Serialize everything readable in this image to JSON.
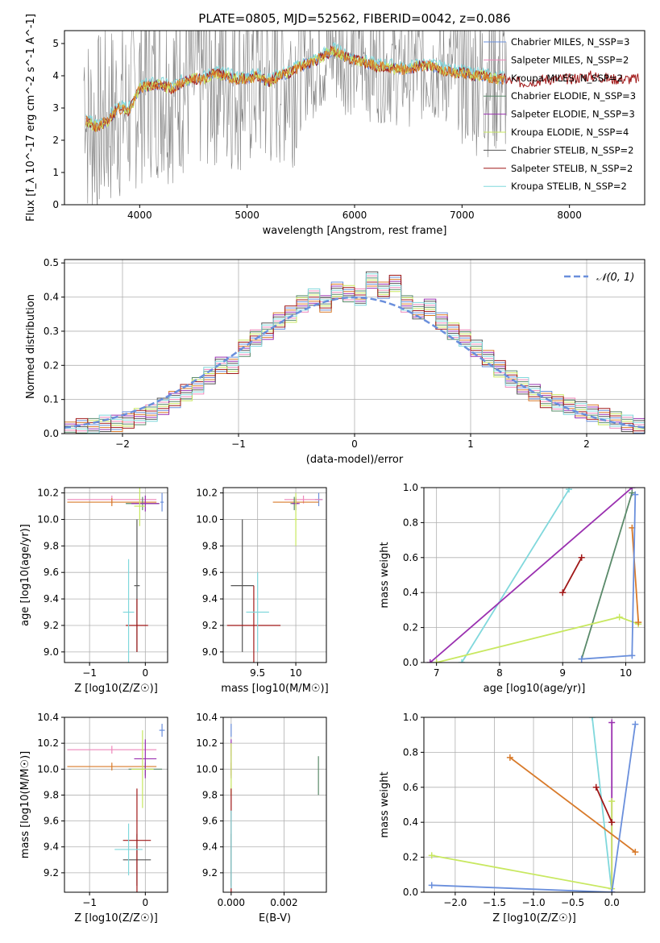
{
  "figure_title": "PLATE=0805, MJD=52562, FIBERID=0042, z=0.086",
  "colors": {
    "chabrier_miles": "#6a8fdc",
    "salpeter_miles": "#ee88bb",
    "kroupa_miles": "#d87a2a",
    "chabrier_elodie": "#5a8a6a",
    "salpeter_elodie": "#9a30b0",
    "kroupa_elodie": "#c8e860",
    "chabrier_stelib": "#555555",
    "salpeter_stelib": "#a01818",
    "kroupa_stelib": "#80d8dc",
    "data": "#808080",
    "grid": "#b0b0b0"
  },
  "chart_data": [
    {
      "id": "spectrum",
      "type": "line",
      "xlabel": "wavelength [Angstrom, rest frame]",
      "ylabel": "Flux [f_λ 10^-17 erg cm^-2 s^-1 A^-1]",
      "xlim": [
        3300,
        8700
      ],
      "ylim": [
        0,
        5.4
      ],
      "xticks": [
        4000,
        5000,
        6000,
        7000,
        8000
      ],
      "yticks": [
        0,
        1,
        2,
        3,
        4,
        5
      ],
      "legend_position": "top-right",
      "series": [
        {
          "name": "Chabrier MILES, N_SSP=3",
          "color_key": "chabrier_miles"
        },
        {
          "name": "Salpeter MILES, N_SSP=2",
          "color_key": "salpeter_miles"
        },
        {
          "name": "Kroupa MILES, N_SSP=2",
          "color_key": "kroupa_miles"
        },
        {
          "name": "Chabrier ELODIE, N_SSP=3",
          "color_key": "chabrier_elodie"
        },
        {
          "name": "Salpeter ELODIE, N_SSP=3",
          "color_key": "salpeter_elodie"
        },
        {
          "name": "Kroupa ELODIE, N_SSP=4",
          "color_key": "kroupa_elodie"
        },
        {
          "name": "Chabrier STELIB, N_SSP=2",
          "color_key": "chabrier_stelib"
        },
        {
          "name": "Salpeter STELIB, N_SSP=2",
          "color_key": "salpeter_stelib"
        },
        {
          "name": "Kroupa STELIB, N_SSP=2",
          "color_key": "kroupa_stelib"
        }
      ],
      "model_continuum": [
        [
          3500,
          2.6
        ],
        [
          3600,
          2.4
        ],
        [
          3700,
          2.6
        ],
        [
          3800,
          3.0
        ],
        [
          3900,
          2.9
        ],
        [
          4000,
          3.6
        ],
        [
          4100,
          3.7
        ],
        [
          4200,
          3.7
        ],
        [
          4300,
          3.6
        ],
        [
          4400,
          3.8
        ],
        [
          4500,
          3.9
        ],
        [
          4600,
          3.9
        ],
        [
          4700,
          4.1
        ],
        [
          4800,
          4.0
        ],
        [
          4900,
          3.9
        ],
        [
          5000,
          3.9
        ],
        [
          5100,
          4.0
        ],
        [
          5200,
          3.8
        ],
        [
          5300,
          4.0
        ],
        [
          5400,
          4.1
        ],
        [
          5500,
          4.3
        ],
        [
          5600,
          4.4
        ],
        [
          5700,
          4.6
        ],
        [
          5800,
          4.8
        ],
        [
          5900,
          4.6
        ],
        [
          6000,
          4.5
        ],
        [
          6100,
          4.4
        ],
        [
          6200,
          4.3
        ],
        [
          6300,
          4.3
        ],
        [
          6400,
          4.2
        ],
        [
          6500,
          4.2
        ],
        [
          6600,
          4.3
        ],
        [
          6700,
          4.3
        ],
        [
          6800,
          4.2
        ],
        [
          6900,
          4.1
        ],
        [
          7000,
          4.1
        ],
        [
          7100,
          4.0
        ],
        [
          7200,
          4.0
        ],
        [
          7300,
          3.9
        ],
        [
          7400,
          3.9
        ],
        [
          7500,
          3.8
        ],
        [
          7600,
          3.8
        ],
        [
          7800,
          3.9
        ],
        [
          8000,
          3.9
        ],
        [
          8200,
          4.0
        ],
        [
          8400,
          3.9
        ],
        [
          8600,
          3.9
        ]
      ]
    },
    {
      "id": "residuals",
      "type": "histogram",
      "xlabel": "(data-model)/error",
      "ylabel": "Normed distribution",
      "xlim": [
        -2.5,
        2.5
      ],
      "ylim": [
        0,
        0.51
      ],
      "xticks": [
        -2,
        -1,
        0,
        1,
        2
      ],
      "yticks": [
        0.0,
        0.1,
        0.2,
        0.3,
        0.4,
        0.5
      ],
      "legend_label": "𝒩(0, 1)",
      "legend_position": "top-right",
      "bin_width": 0.1,
      "bin_start": -2.5,
      "bin_values": [
        0.01,
        0.02,
        0.02,
        0.03,
        0.03,
        0.04,
        0.05,
        0.06,
        0.08,
        0.1,
        0.12,
        0.14,
        0.17,
        0.2,
        0.2,
        0.25,
        0.28,
        0.3,
        0.33,
        0.35,
        0.38,
        0.4,
        0.38,
        0.42,
        0.41,
        0.4,
        0.45,
        0.42,
        0.44,
        0.38,
        0.36,
        0.37,
        0.33,
        0.3,
        0.28,
        0.25,
        0.22,
        0.19,
        0.16,
        0.14,
        0.12,
        0.1,
        0.09,
        0.08,
        0.07,
        0.06,
        0.05,
        0.04,
        0.03,
        0.02
      ]
    },
    {
      "id": "z_age",
      "type": "errorbar",
      "xlabel": "Z [log10(Z/Z☉)]",
      "ylabel": "age [log10(age/yr)]",
      "xlim": [
        -1.45,
        0.4
      ],
      "ylim": [
        8.92,
        10.24
      ],
      "xticks": [
        -1,
        0
      ],
      "yticks": [
        9.0,
        9.2,
        9.4,
        9.6,
        9.8,
        10.0,
        10.2
      ],
      "points": [
        {
          "c": "chabrier_miles",
          "x": 0.3,
          "y": 10.13,
          "ex": 0.03,
          "ey": 0.07
        },
        {
          "c": "salpeter_miles",
          "x": -0.6,
          "y": 10.15,
          "ex": 0.8,
          "ey": 0.03
        },
        {
          "c": "kroupa_miles",
          "x": -0.6,
          "y": 10.13,
          "ex": 0.8,
          "ey": 0.03
        },
        {
          "c": "chabrier_elodie",
          "x": -0.05,
          "y": 10.12,
          "ex": 0.3,
          "ey": 0.05
        },
        {
          "c": "salpeter_elodie",
          "x": 0.0,
          "y": 10.12,
          "ex": 0.25,
          "ey": 0.06
        },
        {
          "c": "kroupa_elodie",
          "x": -0.1,
          "y": 10.1,
          "ex": 0.1,
          "ey": 0.15
        },
        {
          "c": "chabrier_stelib",
          "x": -0.15,
          "y": 9.5,
          "ex": 0.05,
          "ey": 0.5
        },
        {
          "c": "salpeter_stelib",
          "x": -0.15,
          "y": 9.2,
          "ex": 0.2,
          "ey": 0.2
        },
        {
          "c": "kroupa_stelib",
          "x": -0.3,
          "y": 9.3,
          "ex": 0.1,
          "ey": 0.4
        }
      ]
    },
    {
      "id": "mass_age",
      "type": "errorbar",
      "xlabel": "mass [log10(M/M☉)]",
      "ylabel": "",
      "xlim": [
        9.05,
        10.4
      ],
      "ylim": [
        8.92,
        10.24
      ],
      "xticks": [
        9.5,
        10.0
      ],
      "yticks": [
        9.0,
        9.2,
        9.4,
        9.6,
        9.8,
        10.0,
        10.2
      ],
      "points": [
        {
          "c": "chabrier_miles",
          "x": 10.3,
          "y": 10.15,
          "ex": 0.05,
          "ey": 0.05
        },
        {
          "c": "salpeter_miles",
          "x": 10.1,
          "y": 10.15,
          "ex": 0.25,
          "ey": 0.03
        },
        {
          "c": "kroupa_miles",
          "x": 10.0,
          "y": 10.13,
          "ex": 0.3,
          "ey": 0.03
        },
        {
          "c": "chabrier_elodie",
          "x": 9.98,
          "y": 10.12,
          "ex": 0.05,
          "ey": 0.05
        },
        {
          "c": "salpeter_elodie",
          "x": 10.0,
          "y": 10.12,
          "ex": 0.05,
          "ey": 0.05
        },
        {
          "c": "kroupa_elodie",
          "x": 10.0,
          "y": 10.0,
          "ex": 0.02,
          "ey": 0.2
        },
        {
          "c": "chabrier_stelib",
          "x": 9.3,
          "y": 9.5,
          "ex": 0.15,
          "ey": 0.5
        },
        {
          "c": "salpeter_stelib",
          "x": 9.45,
          "y": 9.2,
          "ex": 0.35,
          "ey": 0.3
        },
        {
          "c": "kroupa_stelib",
          "x": 9.5,
          "y": 9.3,
          "ex": 0.15,
          "ey": 0.3
        }
      ]
    },
    {
      "id": "age_weight",
      "type": "line",
      "xlabel": "age [log10(age/yr)]",
      "ylabel": "mass weight",
      "xlim": [
        6.8,
        10.3
      ],
      "ylim": [
        0,
        1
      ],
      "xticks": [
        7,
        8,
        9,
        10
      ],
      "yticks": [
        0.0,
        0.2,
        0.4,
        0.6,
        0.8,
        1.0
      ],
      "series": [
        {
          "c": "kroupa_stelib",
          "pts": [
            [
              7.4,
              0.0
            ],
            [
              9.1,
              0.99
            ]
          ]
        },
        {
          "c": "salpeter_elodie",
          "pts": [
            [
              6.9,
              0.0
            ],
            [
              10.1,
              1.0
            ]
          ]
        },
        {
          "c": "chabrier_elodie",
          "pts": [
            [
              9.3,
              0.02
            ],
            [
              10.1,
              0.97
            ]
          ]
        },
        {
          "c": "kroupa_elodie",
          "pts": [
            [
              7.0,
              0.0
            ],
            [
              9.9,
              0.26
            ],
            [
              10.2,
              0.22
            ]
          ]
        },
        {
          "c": "salpeter_stelib",
          "pts": [
            [
              9.0,
              0.4
            ],
            [
              9.3,
              0.6
            ]
          ]
        },
        {
          "c": "kroupa_miles",
          "pts": [
            [
              10.1,
              0.77
            ],
            [
              10.2,
              0.23
            ]
          ]
        },
        {
          "c": "chabrier_miles",
          "pts": [
            [
              9.3,
              0.02
            ],
            [
              10.1,
              0.04
            ],
            [
              10.15,
              0.96
            ]
          ]
        }
      ]
    },
    {
      "id": "z_mass",
      "type": "errorbar",
      "xlabel": "Z [log10(Z/Z☉)]",
      "ylabel": "mass [log10(M/M☉)]",
      "xlim": [
        -1.45,
        0.4
      ],
      "ylim": [
        9.05,
        10.4
      ],
      "xticks": [
        -1,
        0
      ],
      "yticks": [
        9.2,
        9.4,
        9.6,
        9.8,
        10.0,
        10.2,
        10.4
      ],
      "points": [
        {
          "c": "chabrier_miles",
          "x": 0.3,
          "y": 10.3,
          "ex": 0.05,
          "ey": 0.05
        },
        {
          "c": "salpeter_miles",
          "x": -0.6,
          "y": 10.15,
          "ex": 0.8,
          "ey": 0.03
        },
        {
          "c": "kroupa_miles",
          "x": -0.6,
          "y": 10.02,
          "ex": 0.8,
          "ey": 0.03
        },
        {
          "c": "chabrier_elodie",
          "x": 0.0,
          "y": 10.0,
          "ex": 0.3,
          "ey": 0.05
        },
        {
          "c": "salpeter_elodie",
          "x": 0.0,
          "y": 10.08,
          "ex": 0.2,
          "ey": 0.15
        },
        {
          "c": "kroupa_elodie",
          "x": -0.05,
          "y": 10.0,
          "ex": 0.2,
          "ey": 0.3
        },
        {
          "c": "chabrier_stelib",
          "x": -0.15,
          "y": 9.3,
          "ex": 0.25,
          "ey": 0.2
        },
        {
          "c": "salpeter_stelib",
          "x": -0.15,
          "y": 9.45,
          "ex": 0.25,
          "ey": 0.4
        },
        {
          "c": "kroupa_stelib",
          "x": -0.3,
          "y": 9.38,
          "ex": 0.25,
          "ey": 0.2
        }
      ]
    },
    {
      "id": "ebv_mass",
      "type": "errorbar",
      "xlabel": "E(B-V)",
      "ylabel": "",
      "xlim": [
        -0.0003,
        0.0036
      ],
      "ylim": [
        9.05,
        10.4
      ],
      "xticks": [
        0.0,
        0.002
      ],
      "xtick_labels": [
        "0.000",
        "0.002"
      ],
      "yticks": [
        9.2,
        9.4,
        9.6,
        9.8,
        10.0,
        10.2,
        10.4
      ],
      "points": [
        {
          "c": "chabrier_miles",
          "x": 0.0,
          "y": 10.3,
          "ex": 0.0,
          "ey": 0.05
        },
        {
          "c": "salpeter_miles",
          "x": 0.0,
          "y": 10.15,
          "ex": 0.0,
          "ey": 0.05
        },
        {
          "c": "kroupa_miles",
          "x": 0.0,
          "y": 10.0,
          "ex": 0.0,
          "ey": 0.05
        },
        {
          "c": "chabrier_elodie",
          "x": 0.0033,
          "y": 9.95,
          "ex": 0.0,
          "ey": 0.15
        },
        {
          "c": "salpeter_elodie",
          "x": 0.0,
          "y": 10.08,
          "ex": 0.0,
          "ey": 0.15
        },
        {
          "c": "kroupa_elodie",
          "x": 0.0,
          "y": 10.0,
          "ex": 0.0,
          "ey": 0.2
        },
        {
          "c": "chabrier_stelib",
          "x": 0.0,
          "y": 9.3,
          "ex": 0.0,
          "ey": 0.2
        },
        {
          "c": "salpeter_stelib",
          "x": 0.0,
          "y": 9.45,
          "ex": 0.0,
          "ey": 0.4
        },
        {
          "c": "kroupa_stelib",
          "x": 0.0,
          "y": 9.38,
          "ex": 0.0,
          "ey": 0.3
        }
      ]
    },
    {
      "id": "z_weight",
      "type": "line",
      "xlabel": "Z [log10(Z/Z☉)]",
      "ylabel": "mass weight",
      "xlim": [
        -2.4,
        0.42
      ],
      "ylim": [
        0,
        1
      ],
      "xticks": [
        -2.0,
        -1.5,
        -1.0,
        -0.5,
        0.0
      ],
      "xtick_labels": [
        "−2.0",
        "−1.5",
        "−1.0",
        "−0.5",
        "0.0"
      ],
      "yticks": [
        0.0,
        0.2,
        0.4,
        0.6,
        0.8,
        1.0
      ],
      "series": [
        {
          "c": "kroupa_stelib",
          "pts": [
            [
              -0.25,
              1.0
            ],
            [
              0.0,
              0.0
            ]
          ]
        },
        {
          "c": "salpeter_elodie",
          "pts": [
            [
              0.0,
              0.97
            ],
            [
              0.0,
              0.0
            ]
          ]
        },
        {
          "c": "kroupa_elodie",
          "pts": [
            [
              -2.3,
              0.21
            ],
            [
              0.0,
              0.02
            ],
            [
              0.0,
              0.52
            ]
          ]
        },
        {
          "c": "salpeter_stelib",
          "pts": [
            [
              -0.2,
              0.6
            ],
            [
              0.0,
              0.4
            ]
          ]
        },
        {
          "c": "kroupa_miles",
          "pts": [
            [
              -1.3,
              0.77
            ],
            [
              0.3,
              0.23
            ]
          ]
        },
        {
          "c": "chabrier_miles",
          "pts": [
            [
              -2.3,
              0.04
            ],
            [
              0.0,
              0.0
            ],
            [
              0.3,
              0.96
            ]
          ]
        }
      ]
    }
  ]
}
